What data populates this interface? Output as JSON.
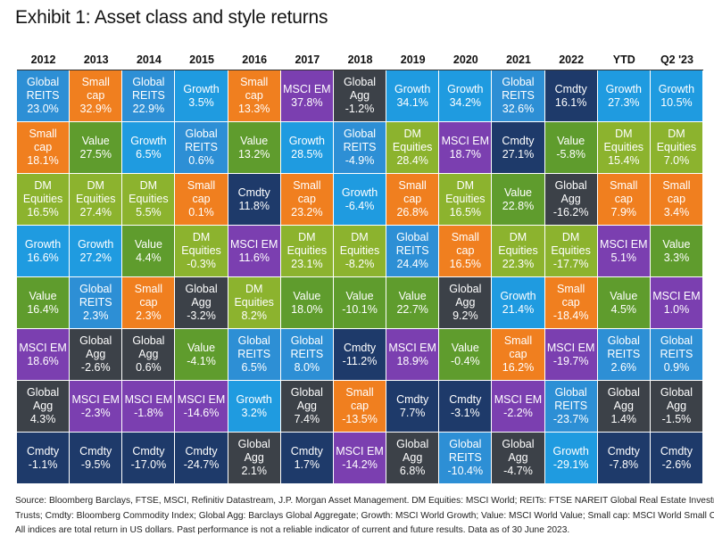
{
  "title": "Exhibit 1: Asset class and style returns",
  "colors": {
    "Global REITS": "#2d8fd5",
    "Small cap": "#f07f1f",
    "Growth": "#1f9be0",
    "MSCI EM": "#7b3fb0",
    "Global Agg": "#3c4148",
    "Cmdty": "#1e3a6a",
    "Value": "#5f9c2d",
    "DM Equities": "#8cb32e"
  },
  "dark_text_assets": [],
  "chart_data": {
    "type": "table",
    "title": "Exhibit 1: Asset class and style returns",
    "columns": [
      "2012",
      "2013",
      "2014",
      "2015",
      "2016",
      "2017",
      "2018",
      "2019",
      "2020",
      "2021",
      "2022",
      "YTD",
      "Q2 '23"
    ],
    "ranking": [
      [
        [
          "Global REITS",
          "23.0%"
        ],
        [
          "Small cap",
          "18.1%"
        ],
        [
          "DM Equities",
          "16.5%"
        ],
        [
          "Growth",
          "16.6%"
        ],
        [
          "Value",
          "16.4%"
        ],
        [
          "MSCI EM",
          "18.6%"
        ],
        [
          "Global Agg",
          "4.3%"
        ],
        [
          "Cmdty",
          "-1.1%"
        ]
      ],
      [
        [
          "Small cap",
          "32.9%"
        ],
        [
          "Value",
          "27.5%"
        ],
        [
          "DM Equities",
          "27.4%"
        ],
        [
          "Growth",
          "27.2%"
        ],
        [
          "Global REITS",
          "2.3%"
        ],
        [
          "Global Agg",
          "-2.6%"
        ],
        [
          "MSCI EM",
          "-2.3%"
        ],
        [
          "Cmdty",
          "-9.5%"
        ]
      ],
      [
        [
          "Global REITS",
          "22.9%"
        ],
        [
          "Growth",
          "6.5%"
        ],
        [
          "DM Equities",
          "5.5%"
        ],
        [
          "Value",
          "4.4%"
        ],
        [
          "Small cap",
          "2.3%"
        ],
        [
          "Global Agg",
          "0.6%"
        ],
        [
          "MSCI EM",
          "-1.8%"
        ],
        [
          "Cmdty",
          "-17.0%"
        ]
      ],
      [
        [
          "Growth",
          "3.5%"
        ],
        [
          "Global REITS",
          "0.6%"
        ],
        [
          "Small cap",
          "0.1%"
        ],
        [
          "DM Equities",
          "-0.3%"
        ],
        [
          "Global Agg",
          "-3.2%"
        ],
        [
          "Value",
          "-4.1%"
        ],
        [
          "MSCI EM",
          "-14.6%"
        ],
        [
          "Cmdty",
          "-24.7%"
        ]
      ],
      [
        [
          "Small cap",
          "13.3%"
        ],
        [
          "Value",
          "13.2%"
        ],
        [
          "Cmdty",
          "11.8%"
        ],
        [
          "MSCI EM",
          "11.6%"
        ],
        [
          "DM Equities",
          "8.2%"
        ],
        [
          "Global REITS",
          "6.5%"
        ],
        [
          "Growth",
          "3.2%"
        ],
        [
          "Global Agg",
          "2.1%"
        ]
      ],
      [
        [
          "MSCI EM",
          "37.8%"
        ],
        [
          "Growth",
          "28.5%"
        ],
        [
          "Small cap",
          "23.2%"
        ],
        [
          "DM Equities",
          "23.1%"
        ],
        [
          "Value",
          "18.0%"
        ],
        [
          "Global REITS",
          "8.0%"
        ],
        [
          "Global Agg",
          "7.4%"
        ],
        [
          "Cmdty",
          "1.7%"
        ]
      ],
      [
        [
          "Global Agg",
          "-1.2%"
        ],
        [
          "Global REITS",
          "-4.9%"
        ],
        [
          "Growth",
          "-6.4%"
        ],
        [
          "DM Equities",
          "-8.2%"
        ],
        [
          "Value",
          "-10.1%"
        ],
        [
          "Cmdty",
          "-11.2%"
        ],
        [
          "Small cap",
          "-13.5%"
        ],
        [
          "MSCI EM",
          "-14.2%"
        ]
      ],
      [
        [
          "Growth",
          "34.1%"
        ],
        [
          "DM Equities",
          "28.4%"
        ],
        [
          "Small cap",
          "26.8%"
        ],
        [
          "Global REITS",
          "24.4%"
        ],
        [
          "Value",
          "22.7%"
        ],
        [
          "MSCI EM",
          "18.9%"
        ],
        [
          "Cmdty",
          "7.7%"
        ],
        [
          "Global Agg",
          "6.8%"
        ]
      ],
      [
        [
          "Growth",
          "34.2%"
        ],
        [
          "MSCI EM",
          "18.7%"
        ],
        [
          "DM Equities",
          "16.5%"
        ],
        [
          "Small cap",
          "16.5%"
        ],
        [
          "Global Agg",
          "9.2%"
        ],
        [
          "Value",
          "-0.4%"
        ],
        [
          "Cmdty",
          "-3.1%"
        ],
        [
          "Global REITS",
          "-10.4%"
        ]
      ],
      [
        [
          "Global REITS",
          "32.6%"
        ],
        [
          "Cmdty",
          "27.1%"
        ],
        [
          "Value",
          "22.8%"
        ],
        [
          "DM Equities",
          "22.3%"
        ],
        [
          "Growth",
          "21.4%"
        ],
        [
          "Small cap",
          "16.2%"
        ],
        [
          "MSCI EM",
          "-2.2%"
        ],
        [
          "Global Agg",
          "-4.7%"
        ]
      ],
      [
        [
          "Cmdty",
          "16.1%"
        ],
        [
          "Value",
          "-5.8%"
        ],
        [
          "Global Agg",
          "-16.2%"
        ],
        [
          "DM Equities",
          "-17.7%"
        ],
        [
          "Small cap",
          "-18.4%"
        ],
        [
          "MSCI EM",
          "-19.7%"
        ],
        [
          "Global REITS",
          "-23.7%"
        ],
        [
          "Growth",
          "-29.1%"
        ]
      ],
      [
        [
          "Growth",
          "27.3%"
        ],
        [
          "DM Equities",
          "15.4%"
        ],
        [
          "Small cap",
          "7.9%"
        ],
        [
          "MSCI EM",
          "5.1%"
        ],
        [
          "Value",
          "4.5%"
        ],
        [
          "Global REITS",
          "2.6%"
        ],
        [
          "Global Agg",
          "1.4%"
        ],
        [
          "Cmdty",
          "-7.8%"
        ]
      ],
      [
        [
          "Growth",
          "10.5%"
        ],
        [
          "DM Equities",
          "7.0%"
        ],
        [
          "Small cap",
          "3.4%"
        ],
        [
          "Value",
          "3.3%"
        ],
        [
          "MSCI EM",
          "1.0%"
        ],
        [
          "Global REITS",
          "0.9%"
        ],
        [
          "Global Agg",
          "-1.5%"
        ],
        [
          "Cmdty",
          "-2.6%"
        ]
      ]
    ],
    "label_lines": {
      "Global REITS": [
        "Global",
        "REITS"
      ],
      "Small cap": [
        "Small",
        "cap"
      ],
      "DM Equities": [
        "DM",
        "Equities"
      ],
      "Global Agg": [
        "Global",
        "Agg"
      ],
      "Growth": [
        "Growth"
      ],
      "Value": [
        "Value"
      ],
      "MSCI EM": [
        "MSCI EM"
      ],
      "Cmdty": [
        "Cmdty"
      ]
    }
  },
  "footnote": [
    "Source: Bloomberg Barclays, FTSE, MSCI, Refinitiv Datastream, J.P. Morgan Asset Management. DM Equities: MSCI World; REITs: FTSE NAREIT Global Real Estate Investment",
    "Trusts; Cmdty: Bloomberg Commodity Index; Global Agg: Barclays Global Aggregate; Growth: MSCI World Growth; Value: MSCI World Value; Small cap: MSCI World Small Cap.",
    "All indices are total return in US dollars. Past performance is not a reliable indicator of current and future results. Data as of 30 June 2023."
  ]
}
